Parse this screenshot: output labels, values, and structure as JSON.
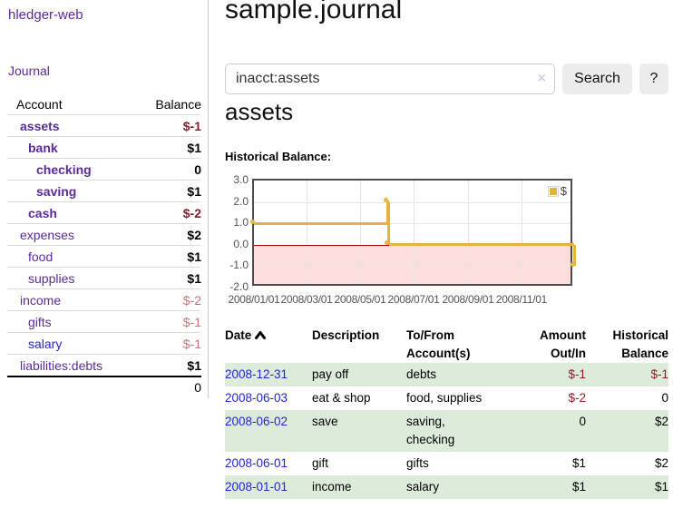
{
  "app": {
    "title": "hledger-web",
    "nav_journal": "Journal"
  },
  "sidebar_table": {
    "headers": {
      "account": "Account",
      "balance": "Balance"
    },
    "rows": [
      {
        "name": "assets",
        "indent": 1,
        "bold": true,
        "link_color": "purple",
        "balance": "$-1",
        "balance_style": "neg-strong"
      },
      {
        "name": "bank",
        "indent": 2,
        "bold": true,
        "link_color": "purple",
        "balance": "$1",
        "balance_style": "pos"
      },
      {
        "name": "checking",
        "indent": 3,
        "bold": true,
        "link_color": "purple",
        "balance": "0",
        "balance_style": "pos"
      },
      {
        "name": "saving",
        "indent": 3,
        "bold": true,
        "link_color": "purple",
        "balance": "$1",
        "balance_style": "pos"
      },
      {
        "name": "cash",
        "indent": 2,
        "bold": true,
        "link_color": "purple",
        "balance": "$-2",
        "balance_style": "neg-strong"
      },
      {
        "name": "expenses",
        "indent": 1,
        "bold": false,
        "link_color": "purple",
        "balance": "$2",
        "balance_style": "pos"
      },
      {
        "name": "food",
        "indent": 2,
        "bold": false,
        "link_color": "purple",
        "balance": "$1",
        "balance_style": "pos"
      },
      {
        "name": "supplies",
        "indent": 2,
        "bold": false,
        "link_color": "purple",
        "balance": "$1",
        "balance_style": "pos"
      },
      {
        "name": "income",
        "indent": 1,
        "bold": false,
        "link_color": "purple",
        "balance": "$-2",
        "balance_style": "neg-soft"
      },
      {
        "name": "gifts",
        "indent": 2,
        "bold": false,
        "link_color": "purple",
        "balance": "$-1",
        "balance_style": "neg-soft"
      },
      {
        "name": "salary",
        "indent": 2,
        "bold": false,
        "link_color": "blue",
        "balance": "$-1",
        "balance_style": "neg-soft"
      },
      {
        "name": "liabilities:debts",
        "indent": 1,
        "bold": false,
        "link_color": "purple",
        "balance": "$1",
        "balance_style": "pos"
      }
    ],
    "total": "0"
  },
  "header": {
    "title": "sample.journal"
  },
  "search": {
    "value": "inacct:assets",
    "clear_icon": "×",
    "button": "Search",
    "help_button": "?"
  },
  "account_page": {
    "heading": "assets",
    "chart_label": "Historical Balance:"
  },
  "chart_data": {
    "type": "line",
    "step": true,
    "title": "Historical Balance",
    "series": [
      {
        "name": "$",
        "color": "#e3b33c",
        "points": [
          {
            "date": "2008-01-01",
            "day": 0,
            "value": 1
          },
          {
            "date": "2008-06-01",
            "day": 152,
            "value": 2
          },
          {
            "date": "2008-06-03",
            "day": 154,
            "value": 0
          },
          {
            "date": "2008-12-31",
            "day": 365,
            "value": -1
          }
        ]
      }
    ],
    "x_domain_days": [
      0,
      365
    ],
    "x_ticks": [
      {
        "label": "2008/01/01",
        "day": 0
      },
      {
        "label": "2008/03/01",
        "day": 60
      },
      {
        "label": "2008/05/01",
        "day": 121
      },
      {
        "label": "2008/07/01",
        "day": 182
      },
      {
        "label": "2008/09/01",
        "day": 244
      },
      {
        "label": "2008/11/01",
        "day": 305
      }
    ],
    "y_ticks": [
      {
        "label": "3.0",
        "value": 3
      },
      {
        "label": "2.0",
        "value": 2
      },
      {
        "label": "1.0",
        "value": 1
      },
      {
        "label": "0.0",
        "value": 0
      },
      {
        "label": "-1.0",
        "value": -1
      },
      {
        "label": "-2.0",
        "value": -2
      }
    ],
    "ylim": [
      -2,
      3
    ],
    "grid": true,
    "legend_position": "top-right",
    "legend": {
      "label": "$"
    },
    "zero_line_color": "#a00000",
    "negative_region_color": "#fcdcdc"
  },
  "register": {
    "headers": [
      {
        "label": "Date"
      },
      {
        "label": "Description"
      },
      {
        "label": "To/From\nAccount(s)"
      },
      {
        "label": "Amount\nOut/In"
      },
      {
        "label": "Historical\nBalance"
      }
    ],
    "rows": [
      {
        "date": "2008-12-31",
        "description": "pay off",
        "accounts": [
          "debts"
        ],
        "amount": "$-1",
        "amount_neg": true,
        "balance": "$-1",
        "balance_neg": true,
        "shade": true
      },
      {
        "date": "2008-06-03",
        "description": "eat & shop",
        "accounts": [
          "food, supplies"
        ],
        "amount": "$-2",
        "amount_neg": true,
        "balance": "0",
        "balance_neg": false,
        "shade": false
      },
      {
        "date": "2008-06-02",
        "description": "save",
        "accounts": [
          "saving,",
          "checking"
        ],
        "amount": "0",
        "amount_neg": false,
        "balance": "$2",
        "balance_neg": false,
        "shade": true
      },
      {
        "date": "2008-06-01",
        "description": "gift",
        "accounts": [
          "gifts"
        ],
        "amount": "$1",
        "amount_neg": false,
        "balance": "$2",
        "balance_neg": false,
        "shade": false
      },
      {
        "date": "2008-01-01",
        "description": "income",
        "accounts": [
          "salary"
        ],
        "amount": "$1",
        "amount_neg": false,
        "balance": "$1",
        "balance_neg": false,
        "shade": true
      }
    ]
  },
  "colors": {
    "link_purple": "#5b2a9a",
    "link_blue": "#2323d3",
    "negative_strong": "#8a1a2d",
    "negative_soft": "#c2737b",
    "row_shade_green": "#ddecda",
    "chart_line_gold": "#e3b33c",
    "chart_negative_pink": "#fcdcdc",
    "chart_zero_red": "#a00000"
  }
}
